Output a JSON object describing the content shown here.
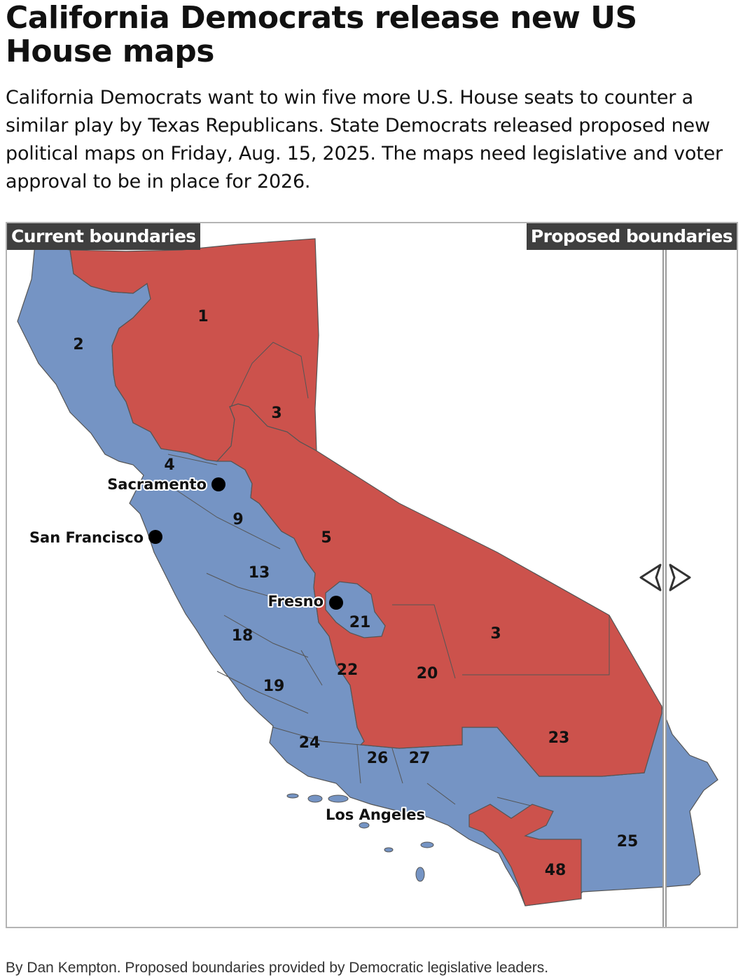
{
  "headline": "California Democrats release new US House maps",
  "dek": "California Democrats want to win five more U.S. House seats to counter a similar play by Texas Republicans. State Democrats released proposed new political maps on Friday, Aug. 15, 2025. The maps need legislative and voter approval to be in place for 2026.",
  "map": {
    "left_label": "Current boundaries",
    "right_label": "Proposed boundaries",
    "colors": {
      "democrat": "#7594c4",
      "republican": "#cc524c",
      "border": "#555555"
    },
    "districts": [
      {
        "id": "1",
        "party": "republican"
      },
      {
        "id": "2",
        "party": "democrat"
      },
      {
        "id": "3",
        "party": "republican"
      },
      {
        "id": "4",
        "party": "democrat"
      },
      {
        "id": "9",
        "party": "democrat"
      },
      {
        "id": "5",
        "party": "republican"
      },
      {
        "id": "13",
        "party": "democrat"
      },
      {
        "id": "21",
        "party": "democrat"
      },
      {
        "id": "18",
        "party": "democrat"
      },
      {
        "id": "3",
        "party": "republican"
      },
      {
        "id": "22",
        "party": "republican"
      },
      {
        "id": "20",
        "party": "republican"
      },
      {
        "id": "19",
        "party": "democrat"
      },
      {
        "id": "23",
        "party": "republican"
      },
      {
        "id": "24",
        "party": "democrat"
      },
      {
        "id": "26",
        "party": "democrat"
      },
      {
        "id": "27",
        "party": "democrat"
      },
      {
        "id": "25",
        "party": "democrat"
      },
      {
        "id": "48",
        "party": "republican"
      }
    ],
    "cities": [
      "Sacramento",
      "San Francisco",
      "Fresno",
      "Los Angeles"
    ],
    "slider_icon": "left-right-chevrons-icon"
  },
  "credit": "By Dan Kempton. Proposed boundaries provided by Democratic legislative leaders."
}
